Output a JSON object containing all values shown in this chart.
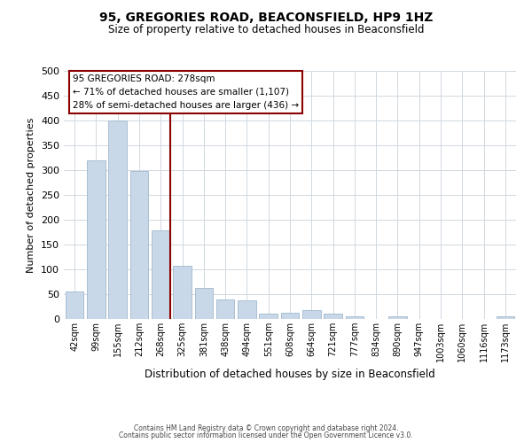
{
  "title": "95, GREGORIES ROAD, BEACONSFIELD, HP9 1HZ",
  "subtitle": "Size of property relative to detached houses in Beaconsfield",
  "xlabel": "Distribution of detached houses by size in Beaconsfield",
  "ylabel": "Number of detached properties",
  "categories": [
    "42sqm",
    "99sqm",
    "155sqm",
    "212sqm",
    "268sqm",
    "325sqm",
    "381sqm",
    "438sqm",
    "494sqm",
    "551sqm",
    "608sqm",
    "664sqm",
    "721sqm",
    "777sqm",
    "834sqm",
    "890sqm",
    "947sqm",
    "1003sqm",
    "1060sqm",
    "1116sqm",
    "1173sqm"
  ],
  "values": [
    55,
    320,
    400,
    298,
    178,
    108,
    63,
    40,
    37,
    10,
    13,
    18,
    10,
    5,
    0,
    5,
    0,
    0,
    0,
    0,
    5
  ],
  "bar_color": "#c8d8e8",
  "bar_edge_color": "#a0b8cc",
  "vline_x_index": 4,
  "vline_color": "#8b0000",
  "annotation_line1": "95 GREGORIES ROAD: 278sqm",
  "annotation_line2": "← 71% of detached houses are smaller (1,107)",
  "annotation_line3": "28% of semi-detached houses are larger (436) →",
  "ylim": [
    0,
    500
  ],
  "yticks": [
    0,
    50,
    100,
    150,
    200,
    250,
    300,
    350,
    400,
    450,
    500
  ],
  "background_color": "#ffffff",
  "grid_color": "#d0d8e0",
  "footer_line1": "Contains HM Land Registry data © Crown copyright and database right 2024.",
  "footer_line2": "Contains public sector information licensed under the Open Government Licence v3.0."
}
